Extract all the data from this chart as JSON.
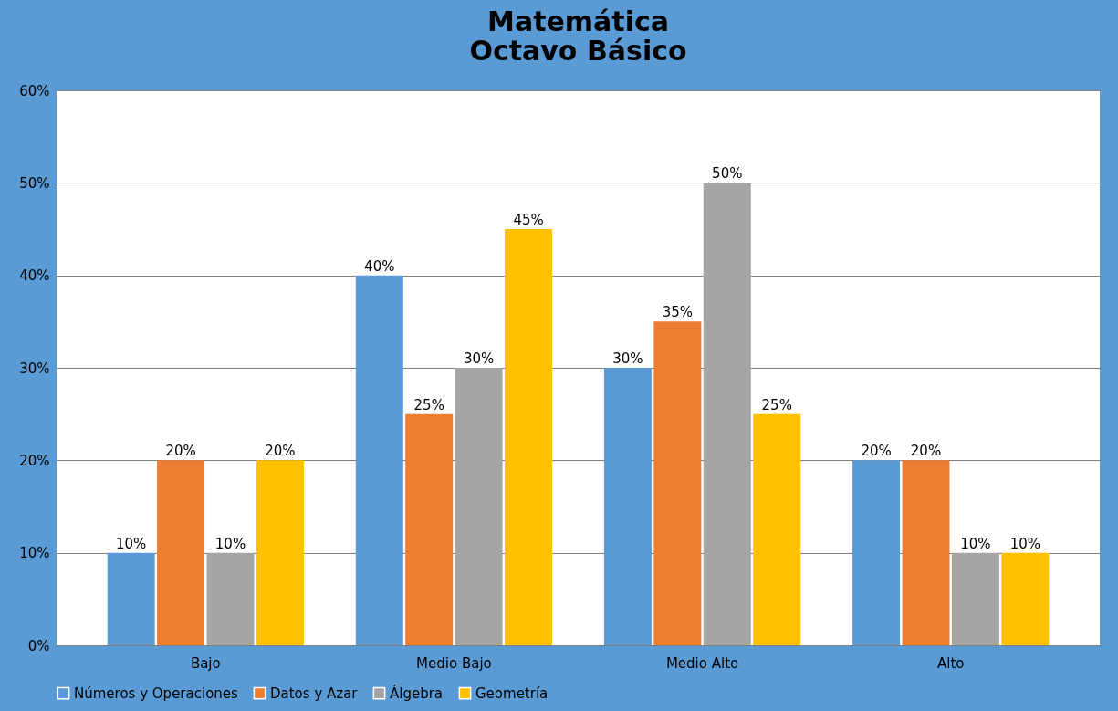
{
  "chart_data": {
    "type": "bar",
    "title": "Matemática\nOctavo Básico",
    "categories": [
      "Bajo",
      "Medio Bajo",
      "Medio Alto",
      "Alto"
    ],
    "series": [
      {
        "name": "Números y Operaciones",
        "color": "#5b9bd5",
        "values": [
          10,
          40,
          30,
          20
        ],
        "value_labels": [
          "10%",
          "40%",
          "30%",
          "20%"
        ]
      },
      {
        "name": "Datos y Azar",
        "color": "#ed7d31",
        "values": [
          20,
          25,
          35,
          20
        ],
        "value_labels": [
          "20%",
          "25%",
          "35%",
          "20%"
        ]
      },
      {
        "name": "Álgebra",
        "color": "#a5a5a5",
        "values": [
          10,
          30,
          50,
          10
        ],
        "value_labels": [
          "10%",
          "30%",
          "50%",
          "10%"
        ]
      },
      {
        "name": "Geometría",
        "color": "#ffc000",
        "values": [
          20,
          45,
          25,
          10
        ],
        "value_labels": [
          "20%",
          "45%",
          "25%",
          "10%"
        ]
      }
    ],
    "ylim": [
      0,
      60
    ],
    "yticks": [
      {
        "value": 0,
        "label": "0%"
      },
      {
        "value": 10,
        "label": "10%"
      },
      {
        "value": 20,
        "label": "20%"
      },
      {
        "value": 30,
        "label": "30%"
      },
      {
        "value": 40,
        "label": "40%"
      },
      {
        "value": 50,
        "label": "50%"
      },
      {
        "value": 60,
        "label": "60%"
      }
    ],
    "grid": "y",
    "legend": "bottom"
  }
}
